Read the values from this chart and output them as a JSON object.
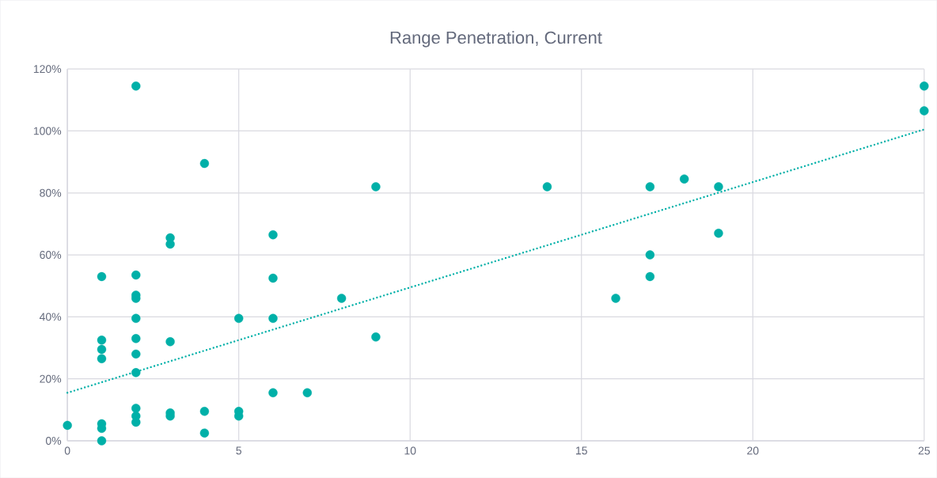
{
  "chart_data": {
    "type": "scatter",
    "title": "Range Penetration, Current",
    "xlim": [
      0,
      25
    ],
    "ylim": [
      0,
      120
    ],
    "xticks": [
      0,
      5,
      10,
      15,
      20,
      25
    ],
    "yticks": [
      {
        "value": 0,
        "label": "0%"
      },
      {
        "value": 20,
        "label": "20%"
      },
      {
        "value": 40,
        "label": "40%"
      },
      {
        "value": 60,
        "label": "60%"
      },
      {
        "value": 80,
        "label": "80%"
      },
      {
        "value": 100,
        "label": "100%"
      },
      {
        "value": 120,
        "label": "120%"
      }
    ],
    "grid": true,
    "series": [
      {
        "color": "#00b0a8",
        "marker": "circle",
        "x": [
          0,
          1,
          1,
          1,
          1,
          1,
          1,
          1,
          2,
          2,
          2,
          2,
          2,
          2,
          2,
          2,
          2,
          2,
          2,
          3,
          3,
          3,
          3,
          3,
          4,
          4,
          4,
          5,
          5,
          5,
          6,
          6,
          6,
          6,
          7,
          8,
          9,
          9,
          14,
          16,
          17,
          17,
          17,
          18,
          19,
          19,
          25,
          25
        ],
        "values": [
          5,
          53,
          32.5,
          29.5,
          26.5,
          5.5,
          4,
          0,
          114.5,
          53.5,
          47,
          46,
          39.5,
          33,
          28,
          22,
          10.5,
          8,
          6,
          65.5,
          63.5,
          32,
          9,
          8,
          89.5,
          9.5,
          2.5,
          39.5,
          9.5,
          8,
          66.5,
          52.5,
          39.5,
          15.5,
          15.5,
          46,
          82,
          33.5,
          82,
          46,
          82,
          60,
          53,
          84.5,
          82,
          67,
          114.5,
          106.5
        ]
      },
      {
        "type": "line",
        "color": "#00b0a8",
        "marker": "none",
        "line_style": "dotted",
        "x": [
          0,
          25
        ],
        "values": [
          15.5,
          100.5
        ]
      }
    ]
  }
}
